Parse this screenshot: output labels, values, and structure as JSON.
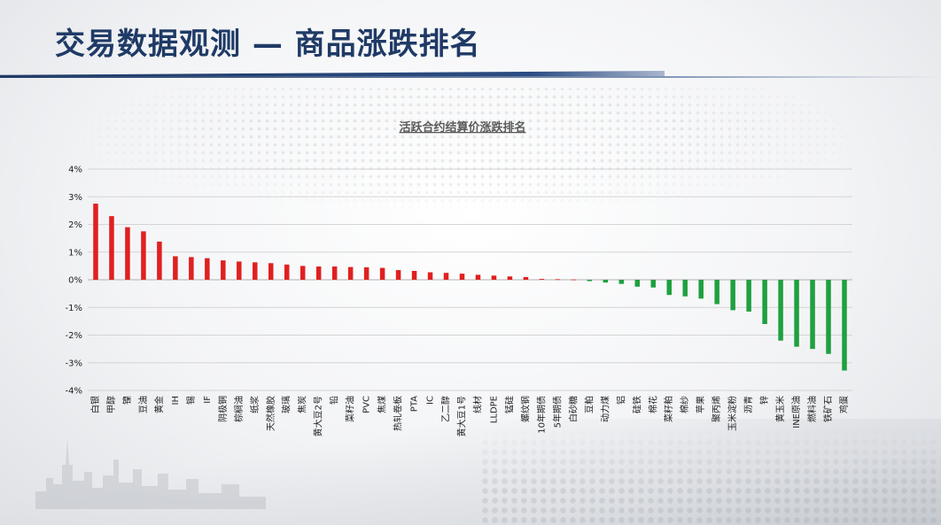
{
  "slide": {
    "title": "交易数据观测 — 商品涨跌排名"
  },
  "colors": {
    "title": "#1f3a66",
    "up": "#e02020",
    "down": "#20a040",
    "grid": "#d4d4d4"
  },
  "chart_data": {
    "type": "bar",
    "title": "活跃合约结算价涨跌排名",
    "xlabel": "",
    "ylabel": "",
    "ylim": [
      -4,
      4
    ],
    "y_ticks": [
      "4%",
      "3%",
      "2%",
      "1%",
      "0%",
      "-1%",
      "-2%",
      "-3%",
      "-4%"
    ],
    "grid": true,
    "categories": [
      "白银",
      "甲醇",
      "镍",
      "豆油",
      "黄金",
      "IH",
      "锡",
      "IF",
      "阴极铜",
      "棕榈油",
      "纸浆",
      "天然橡胶",
      "玻璃",
      "焦炭",
      "黄大豆2号",
      "铅",
      "菜籽油",
      "PVC",
      "焦煤",
      "热轧卷板",
      "PTA",
      "IC",
      "乙二醇",
      "黄大豆1号",
      "线材",
      "LLDPE",
      "锰硅",
      "螺纹钢",
      "10年期债",
      "5年期债",
      "白砂糖",
      "豆粕",
      "动力煤",
      "铝",
      "硅铁",
      "棉花",
      "菜籽粕",
      "棉纱",
      "苹果",
      "聚丙烯",
      "玉米淀粉",
      "沥青",
      "锌",
      "黄玉米",
      "INE原油",
      "燃料油",
      "铁矿石",
      "鸡蛋"
    ],
    "values": [
      2.75,
      2.3,
      1.9,
      1.75,
      1.38,
      0.85,
      0.82,
      0.78,
      0.7,
      0.66,
      0.63,
      0.6,
      0.55,
      0.5,
      0.48,
      0.48,
      0.46,
      0.45,
      0.43,
      0.35,
      0.32,
      0.27,
      0.25,
      0.22,
      0.18,
      0.15,
      0.12,
      0.1,
      0.03,
      0.02,
      0.01,
      -0.05,
      -0.1,
      -0.15,
      -0.25,
      -0.28,
      -0.55,
      -0.6,
      -0.68,
      -0.88,
      -1.1,
      -1.15,
      -1.6,
      -2.2,
      -2.42,
      -2.5,
      -2.68,
      -3.28
    ]
  }
}
